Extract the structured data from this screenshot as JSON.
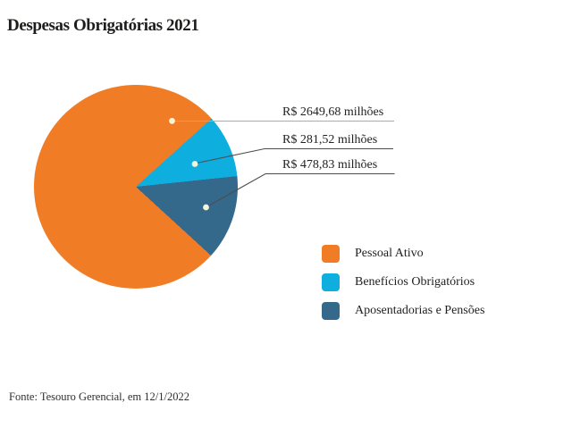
{
  "title": "Despesas Obrigatórias 2021",
  "footer": "Fonte: Tesouro Gerencial, em 12/1/2022",
  "chart_data": {
    "type": "pie",
    "title": "Despesas Obrigatórias 2021",
    "unit": "R$ milhões",
    "slices": [
      {
        "label": "Pessoal Ativo",
        "value": 2649.68,
        "display": "R$ 2649,68 milhões",
        "color": "#F07D26"
      },
      {
        "label": "Benefícios Obrigatórios",
        "value": 281.52,
        "display": "R$ 281,52 milhões",
        "color": "#0EAEDF"
      },
      {
        "label": "Aposentadorias e Pensões",
        "value": 478.83,
        "display": "R$ 478,83 milhões",
        "color": "#35698C"
      }
    ],
    "source": "Fonte: Tesouro Gerencial, em 12/1/2022",
    "layout_hints": {
      "legend_position": "bottom-right",
      "conic_stops_deg": [
        48,
        84,
        132.5
      ],
      "callout_dot_color": "#F7F3D8",
      "leader_line_colors": [
        "#ABABAB",
        "#4D4D4D",
        "#4D4D4D"
      ]
    }
  }
}
